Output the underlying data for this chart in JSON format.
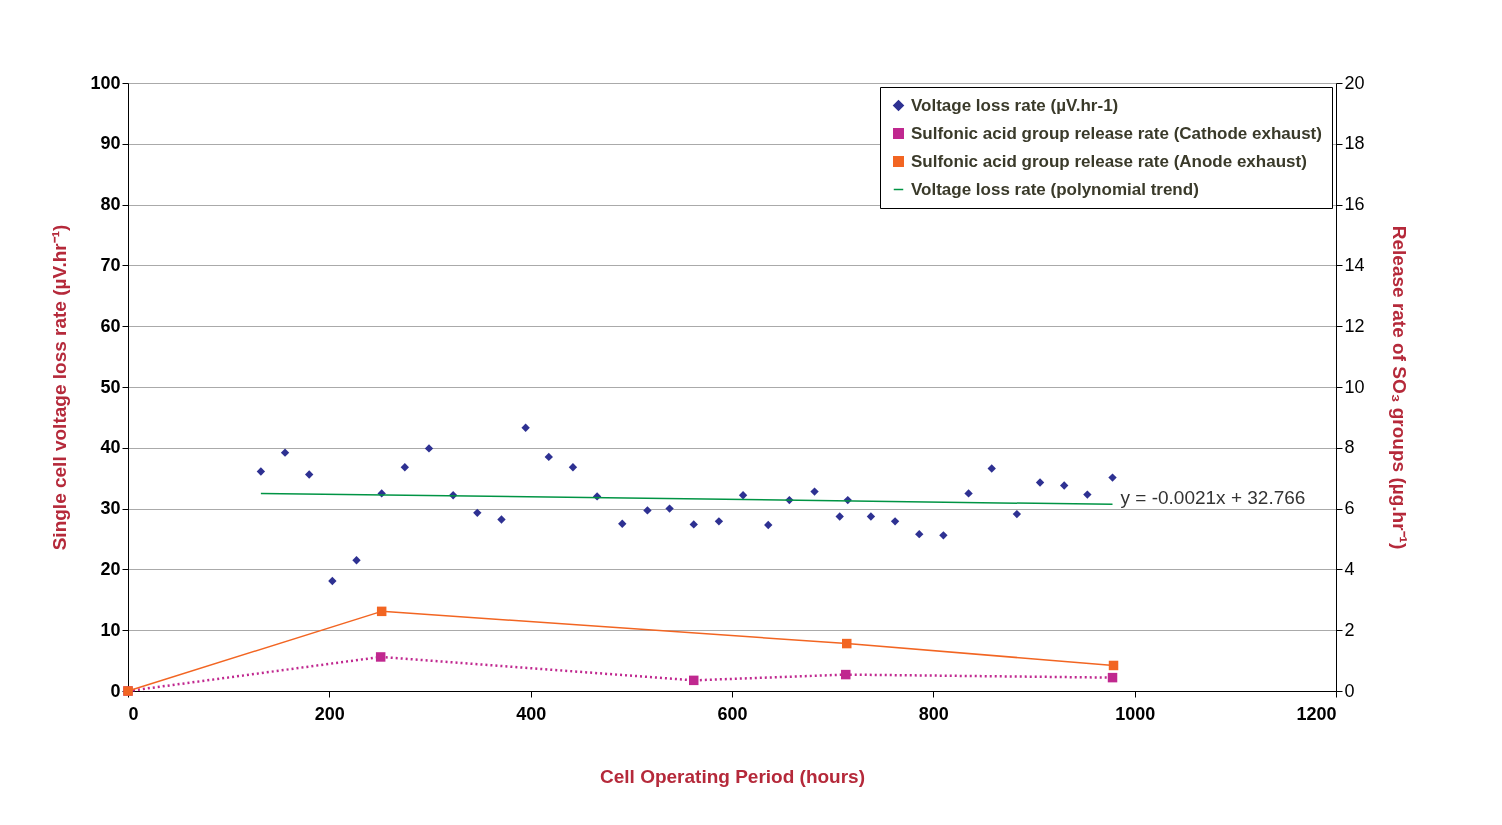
{
  "chart_data": {
    "type": "scatter",
    "xlabel": "Cell Operating Period (hours)",
    "ylabel": "Single cell voltage loss rate (µV.hr⁻¹)",
    "y2label": "Release rate of SO₃ groups (µg.hr⁻¹)",
    "xlim": [
      0,
      1200
    ],
    "xticks": [
      0,
      200,
      400,
      600,
      800,
      1000,
      1200
    ],
    "ylim": [
      0,
      100
    ],
    "yticks": [
      0,
      10,
      20,
      30,
      40,
      50,
      60,
      70,
      80,
      90,
      100
    ],
    "y2lim": [
      0,
      20
    ],
    "y2ticks": [
      0,
      2,
      4,
      6,
      8,
      10,
      12,
      14,
      16,
      18,
      20
    ],
    "grid": "y",
    "legend": "top right",
    "annotations": [
      {
        "text": "y = -0.0021x + 32.766",
        "x": 978,
        "y": 30.7
      }
    ],
    "series": [
      {
        "name": "Voltage loss rate (µV.hr-1)",
        "marker": "diamond",
        "color": "#2e3192",
        "x": [
          132,
          156,
          180,
          203,
          227,
          252,
          275,
          299,
          323,
          347,
          371,
          395,
          418,
          442,
          466,
          491,
          516,
          538,
          562,
          587,
          611,
          636,
          657,
          682,
          707,
          715,
          738,
          762,
          786,
          810,
          835,
          858,
          883,
          906,
          930,
          953,
          978
        ],
        "values": [
          36.1,
          39.2,
          35.6,
          18.1,
          21.5,
          32.5,
          36.8,
          39.9,
          32.2,
          29.3,
          28.2,
          43.3,
          38.5,
          36.8,
          32.0,
          27.5,
          29.7,
          30.0,
          27.4,
          27.9,
          32.2,
          27.3,
          31.4,
          32.8,
          28.7,
          31.4,
          28.7,
          27.9,
          25.8,
          25.6,
          32.5,
          36.6,
          29.1,
          34.3,
          33.8,
          32.3,
          35.1
        ]
      },
      {
        "name": "Sulfonic acid group release rate (Cathode exhaust)",
        "type": "line",
        "axis": "y2",
        "marker": "square",
        "line_style": "dotted",
        "color": "#c0288f",
        "x": [
          0,
          251,
          562,
          713,
          978
        ],
        "values": [
          0,
          1.12,
          0.35,
          0.54,
          0.44
        ]
      },
      {
        "name": "Sulfonic acid group release rate (Anode exhaust)",
        "type": "line",
        "axis": "y2",
        "marker": "square",
        "line_style": "solid",
        "color": "#f26522",
        "x": [
          0,
          252,
          714,
          979
        ],
        "values": [
          0,
          2.62,
          1.56,
          0.84
        ]
      },
      {
        "name": "Voltage loss rate (polynomial trend)",
        "type": "line",
        "marker": "none",
        "line_style": "solid",
        "color": "#009444",
        "x": [
          132,
          978
        ],
        "values": [
          32.5,
          30.7
        ]
      }
    ]
  }
}
